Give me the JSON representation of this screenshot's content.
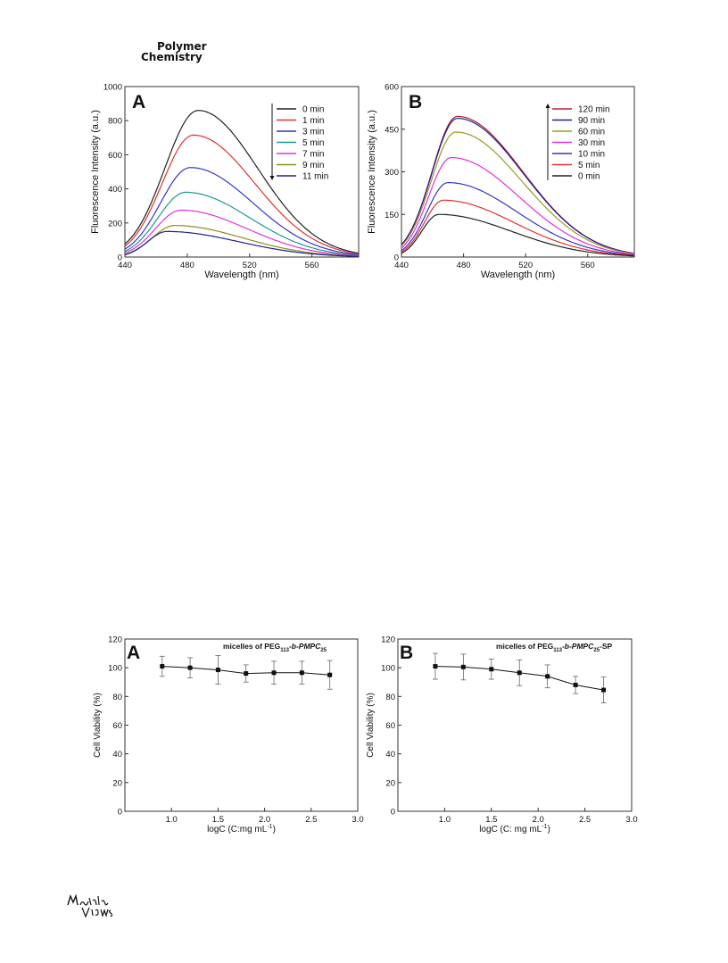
{
  "header": {
    "journal_line1": "Polymer",
    "journal_line2": "Chemistry"
  },
  "publisher_logo": "Materials Views",
  "chart_data": [
    {
      "type": "line",
      "panel": "A",
      "xlabel": "Wavelength (nm)",
      "ylabel": "Fluorescence Intensity (a.u.)",
      "xlim": [
        440,
        590
      ],
      "ylim": [
        0,
        1000
      ],
      "xticks": [
        440,
        480,
        520,
        560
      ],
      "yticks": [
        0,
        200,
        400,
        600,
        800,
        1000
      ],
      "legend_position": "top-right",
      "legend_arrow": "down",
      "series": [
        {
          "name": "0 min",
          "color": "#222222",
          "peak_x": 487,
          "peak_y": 860
        },
        {
          "name": "1 min",
          "color": "#e03030",
          "peak_x": 484,
          "peak_y": 715
        },
        {
          "name": "3 min",
          "color": "#3333cc",
          "peak_x": 482,
          "peak_y": 525
        },
        {
          "name": "5 min",
          "color": "#1a9a90",
          "peak_x": 479,
          "peak_y": 380
        },
        {
          "name": "7 min",
          "color": "#e030e0",
          "peak_x": 476,
          "peak_y": 275
        },
        {
          "name": "9 min",
          "color": "#8c8c1a",
          "peak_x": 472,
          "peak_y": 185
        },
        {
          "name": "11 min",
          "color": "#202090",
          "peak_x": 467,
          "peak_y": 150
        }
      ]
    },
    {
      "type": "line",
      "panel": "B",
      "xlabel": "Wavelength (nm)",
      "ylabel": "Fluorescence Intensity (a.u.)",
      "xlim": [
        440,
        590
      ],
      "ylim": [
        0,
        600
      ],
      "xticks": [
        440,
        480,
        520,
        560
      ],
      "yticks": [
        0,
        150,
        300,
        450,
        600
      ],
      "legend_position": "top-right",
      "legend_arrow": "up",
      "series": [
        {
          "name": "120 min",
          "color": "#b02030",
          "peak_x": 476,
          "peak_y": 495
        },
        {
          "name": "90 min",
          "color": "#202090",
          "peak_x": 476,
          "peak_y": 488
        },
        {
          "name": "60 min",
          "color": "#9a9a20",
          "peak_x": 475,
          "peak_y": 440
        },
        {
          "name": "30 min",
          "color": "#e030e0",
          "peak_x": 472,
          "peak_y": 350
        },
        {
          "name": "10 min",
          "color": "#3333cc",
          "peak_x": 470,
          "peak_y": 262
        },
        {
          "name": "5 min",
          "color": "#e03030",
          "peak_x": 467,
          "peak_y": 200
        },
        {
          "name": "0 min",
          "color": "#222222",
          "peak_x": 464,
          "peak_y": 150
        }
      ]
    },
    {
      "type": "scatter",
      "panel": "A",
      "annotation_pre": "micelles of PEG",
      "annotation_sub1": "113",
      "annotation_mid": "-b-PMPC",
      "annotation_sub2": "25",
      "annotation_post": "",
      "xlabel_pre": "logC (C:mg mL",
      "xlabel_sup": "-1",
      "xlabel_post": ")",
      "ylabel": "Cell Viability (%)",
      "xlim": [
        0.5,
        3.0
      ],
      "ylim": [
        0,
        120
      ],
      "xticks": [
        1.0,
        1.5,
        2.0,
        2.5,
        3.0
      ],
      "xtick_labels": [
        "1.0",
        "1.5",
        "2.0",
        "2.5",
        "3.0"
      ],
      "yticks": [
        0,
        20,
        40,
        60,
        80,
        100,
        120
      ],
      "x": [
        0.9,
        1.2,
        1.5,
        1.8,
        2.1,
        2.4,
        2.7
      ],
      "y": [
        101,
        100,
        98.5,
        96,
        96.5,
        96.5,
        95
      ],
      "err": [
        7,
        7,
        10,
        6,
        8,
        8,
        10
      ]
    },
    {
      "type": "scatter",
      "panel": "B",
      "annotation_pre": "micelles of PEG",
      "annotation_sub1": "113",
      "annotation_mid": "-b-PMPC",
      "annotation_sub2": "25",
      "annotation_post": "-SP",
      "xlabel_pre": "logC (C: mg mL",
      "xlabel_sup": "-1",
      "xlabel_post": ")",
      "ylabel": "Cell Viability (%)",
      "xlim": [
        0.5,
        3.0
      ],
      "ylim": [
        0,
        120
      ],
      "xticks": [
        1.0,
        1.5,
        2.0,
        2.5,
        3.0
      ],
      "xtick_labels": [
        "1.0",
        "1.5",
        "2.0",
        "2.5",
        "3.0"
      ],
      "yticks": [
        0,
        20,
        40,
        60,
        80,
        100,
        120
      ],
      "x": [
        0.9,
        1.2,
        1.5,
        1.8,
        2.1,
        2.4,
        2.7
      ],
      "y": [
        101,
        100.5,
        99,
        96.5,
        94,
        88,
        84.5
      ],
      "err": [
        9,
        9,
        7,
        9,
        8,
        6,
        9
      ]
    }
  ]
}
